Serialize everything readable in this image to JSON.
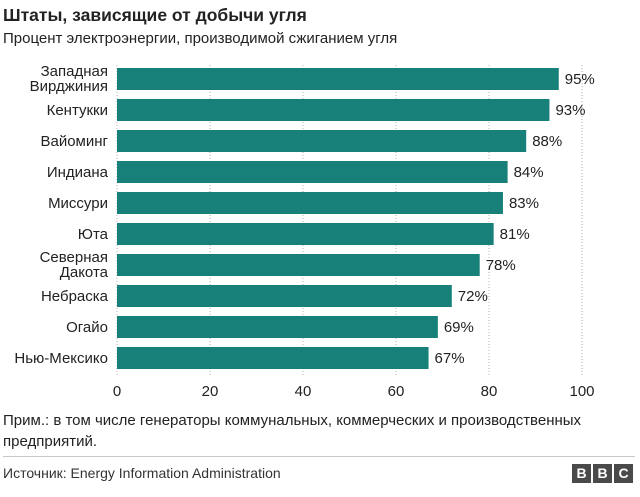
{
  "header": {
    "title": "Штаты, зависящие от добычи угля",
    "subtitle": "Процент электроэнергии, производимой сжиганием угля"
  },
  "chart_data": {
    "type": "bar",
    "orientation": "horizontal",
    "title": "Штаты, зависящие от добычи угля",
    "subtitle": "Процент электроэнергии, производимой сжиганием угля",
    "categories": [
      [
        "Западная",
        "Вирджиния"
      ],
      [
        "Кентукки"
      ],
      [
        "Вайоминг"
      ],
      [
        "Индиана"
      ],
      [
        "Миссури"
      ],
      [
        "Юта"
      ],
      [
        "Северная",
        "Дакота"
      ],
      [
        "Небраска"
      ],
      [
        "Огайо"
      ],
      [
        "Нью-Мексико"
      ]
    ],
    "values": [
      95,
      93,
      88,
      84,
      83,
      81,
      78,
      72,
      69,
      67
    ],
    "value_labels": [
      "95%",
      "93%",
      "88%",
      "84%",
      "83%",
      "81%",
      "78%",
      "72%",
      "69%",
      "67%"
    ],
    "xlim": [
      0,
      100
    ],
    "xticks": [
      0,
      20,
      40,
      60,
      80,
      100
    ],
    "grid": true,
    "bar_color": "#168079",
    "grid_color": "#b0b0b0"
  },
  "note": "Прим.: в том числе генераторы коммунальных, коммерческих и производственных предприятий.",
  "source": "Источник: Energy Information Administration",
  "logo": [
    "B",
    "B",
    "C"
  ]
}
